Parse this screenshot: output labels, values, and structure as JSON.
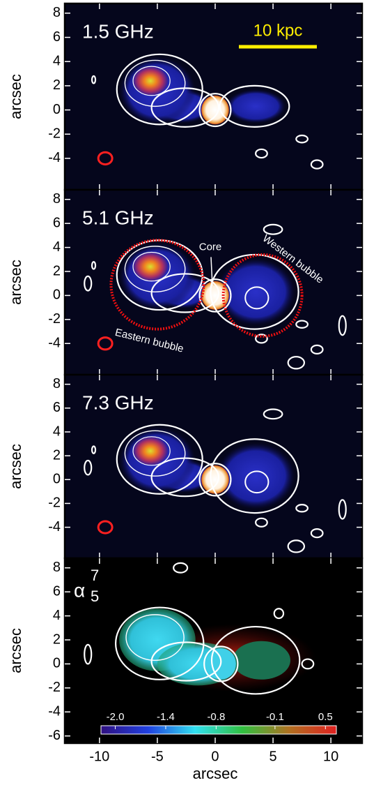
{
  "chart_data": [
    {
      "type": "image",
      "label": "1.5 GHz",
      "scalebar": "10 kpc",
      "ylabel": "arcsec",
      "xlim": [
        -13,
        12.7
      ],
      "xticks": [
        -10,
        -5,
        0,
        5,
        10
      ],
      "ylim": [
        -6.6,
        8.8
      ],
      "yticks": [
        8,
        6,
        4,
        2,
        0,
        -2,
        -4
      ]
    },
    {
      "type": "image",
      "label": "5.1 GHz",
      "ylabel": "arcsec",
      "annotations": [
        "Core",
        "Western bubble",
        "Eastern bubble"
      ],
      "xlim": [
        -13,
        12.7
      ],
      "xticks": [
        -10,
        -5,
        0,
        5,
        10
      ],
      "ylim": [
        -6.6,
        8.8
      ],
      "yticks": [
        8,
        6,
        4,
        2,
        0,
        -2,
        -4
      ]
    },
    {
      "type": "image",
      "label": "7.3 GHz",
      "ylabel": "arcsec",
      "xlim": [
        -13,
        12.7
      ],
      "xticks": [
        -10,
        -5,
        0,
        5,
        10
      ],
      "ylim": [
        -6.6,
        8.8
      ],
      "yticks": [
        8,
        6,
        4,
        2,
        0,
        -2,
        -4
      ]
    },
    {
      "type": "image",
      "label": {
        "symbol": "α",
        "superscript": "7",
        "subscript": "5"
      },
      "ylabel": "arcsec",
      "xlabel": "arcsec",
      "xlim": [
        -13,
        12.7
      ],
      "xticks": [
        -10,
        -5,
        0,
        5,
        10
      ],
      "ylim": [
        -6.6,
        8.8
      ],
      "yticks": [
        8,
        6,
        4,
        2,
        0,
        -2,
        -4,
        -6
      ],
      "colorbar": {
        "clim": [
          -2.17,
          0.63
        ],
        "ticks": [
          {
            "value": -2,
            "label": "-2.0"
          },
          {
            "value": -1.4,
            "label": "-1.4"
          },
          {
            "value": -0.8,
            "label": "-0.8"
          },
          {
            "value": -0.1,
            "label": "-0.1"
          },
          {
            "value": 0.5,
            "label": "0.5"
          }
        ]
      }
    }
  ]
}
